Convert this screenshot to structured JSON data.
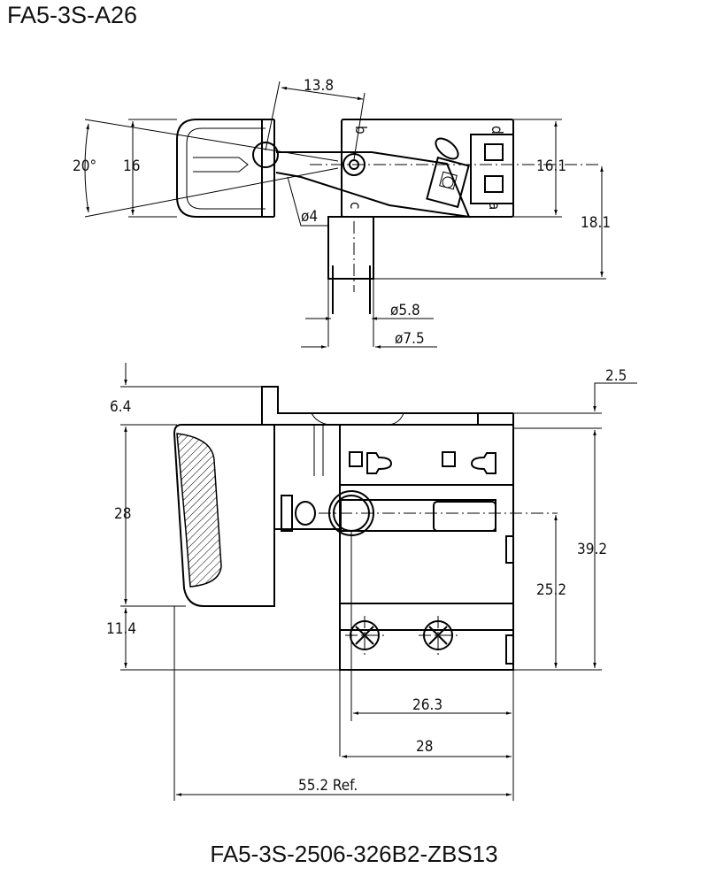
{
  "title": "FA5-3S-A26",
  "caption": "FA5-3S-2506-326B2-ZBS13",
  "top_view": {
    "dims": {
      "angle": "20°",
      "height": "16",
      "pivot_offset": "13.8",
      "pin_dia": "ø4",
      "body_height": "16.1",
      "shaft_offset": "18.1",
      "shaft_dia_inner": "ø5.8",
      "shaft_dia_outer": "ø7.5"
    },
    "terminal_labels": {
      "b": "b",
      "d": "d",
      "c": "c",
      "a": "a"
    }
  },
  "bottom_view": {
    "dims": {
      "tab": "6.4",
      "trigger": "28",
      "trigger_bottom": "11.4",
      "step": "2.5",
      "total_height": "39.2",
      "shaft_height": "25.2",
      "screw_span": "26.3",
      "body_width": "28",
      "overall_length": "55.2 Ref."
    }
  }
}
